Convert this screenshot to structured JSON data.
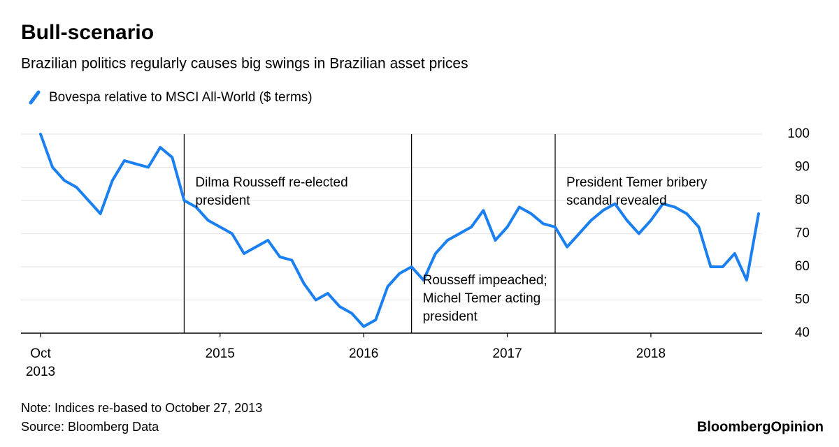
{
  "chart_data": {
    "type": "line",
    "title": "Bull-scenario",
    "subtitle": "Brazilian politics regularly causes big swings in Brazilian asset prices",
    "x": [
      "2013-10",
      "2013-11",
      "2013-12",
      "2014-01",
      "2014-02",
      "2014-03",
      "2014-04",
      "2014-05",
      "2014-06",
      "2014-07",
      "2014-08",
      "2014-09",
      "2014-10",
      "2014-11",
      "2014-12",
      "2015-01",
      "2015-02",
      "2015-03",
      "2015-04",
      "2015-05",
      "2015-06",
      "2015-07",
      "2015-08",
      "2015-09",
      "2015-10",
      "2015-11",
      "2015-12",
      "2016-01",
      "2016-02",
      "2016-03",
      "2016-04",
      "2016-05",
      "2016-06",
      "2016-07",
      "2016-08",
      "2016-09",
      "2016-10",
      "2016-11",
      "2016-12",
      "2017-01",
      "2017-02",
      "2017-03",
      "2017-04",
      "2017-05",
      "2017-06",
      "2017-07",
      "2017-08",
      "2017-09",
      "2017-10",
      "2017-11",
      "2017-12",
      "2018-01",
      "2018-02",
      "2018-03",
      "2018-04",
      "2018-05",
      "2018-06",
      "2018-07",
      "2018-08",
      "2018-09",
      "2018-10"
    ],
    "series": [
      {
        "name": "Bovespa relative to MSCI All-World ($ terms)",
        "color": "#1a7ff0",
        "values": [
          100,
          90,
          86,
          84,
          80,
          76,
          86,
          92,
          91,
          90,
          96,
          93,
          80,
          78,
          74,
          72,
          70,
          64,
          66,
          68,
          63,
          62,
          55,
          50,
          52,
          48,
          46,
          42,
          44,
          54,
          58,
          60,
          56,
          64,
          68,
          70,
          72,
          77,
          68,
          72,
          78,
          76,
          73,
          72,
          66,
          70,
          74,
          77,
          79,
          74,
          70,
          74,
          79,
          78,
          76,
          72,
          60,
          60,
          64,
          56,
          76
        ]
      }
    ],
    "xlim": [
      "2013-10",
      "2018-10"
    ],
    "xticks": [
      {
        "value": "2013-10",
        "label": "Oct 2013"
      },
      {
        "value": "2015-01",
        "label": "2015"
      },
      {
        "value": "2016-01",
        "label": "2016"
      },
      {
        "value": "2017-01",
        "label": "2017"
      },
      {
        "value": "2018-01",
        "label": "2018"
      }
    ],
    "ylim": [
      40,
      100
    ],
    "yticks": [
      40,
      50,
      60,
      70,
      80,
      90,
      100
    ],
    "grid": true,
    "annotations": [
      {
        "x": "2014-10",
        "lines": [
          "Dilma Rousseff re-elected",
          "president"
        ]
      },
      {
        "x": "2016-05",
        "lines": [
          "Rousseff impeached;",
          "Michel Temer acting",
          "president"
        ]
      },
      {
        "x": "2017-05",
        "lines": [
          "President Temer bribery",
          "scandal revealed"
        ]
      }
    ],
    "note": "Note: Indices re-based to October 27, 2013",
    "source": "Source: Bloomberg Data",
    "brand": "BloombergOpinion"
  }
}
